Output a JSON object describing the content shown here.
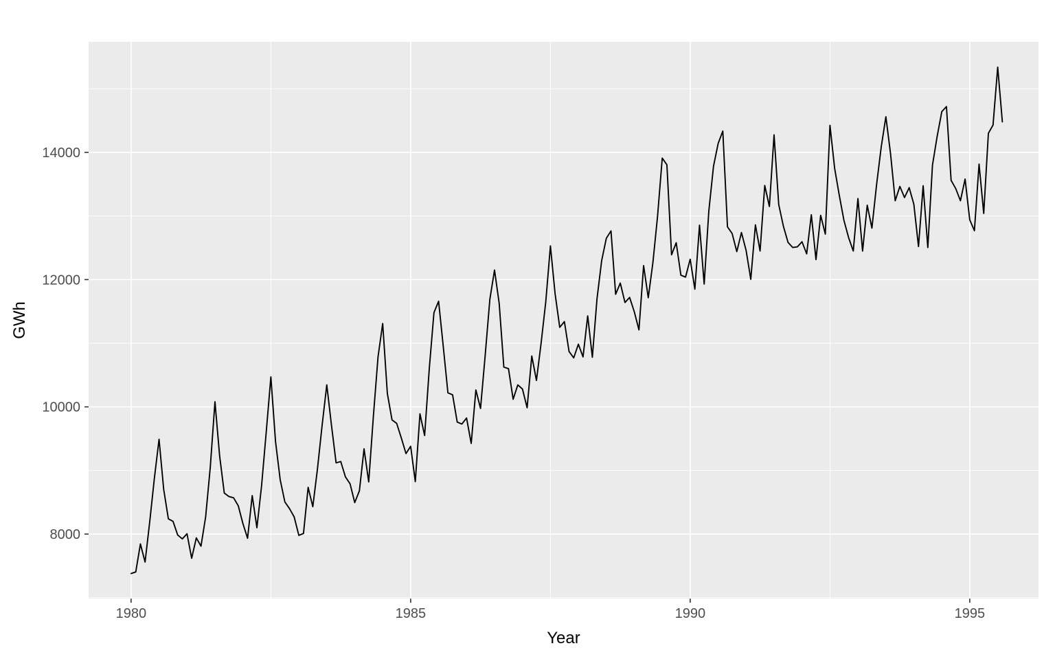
{
  "chart_data": {
    "type": "line",
    "title": "",
    "xlabel": "Year",
    "ylabel": "GWh",
    "legend_position": "none",
    "grid": true,
    "panel_bg_color": "#EBEBEB",
    "grid_color": "#FFFFFF",
    "line_color": "#000000",
    "tick_color": "#333333",
    "tick_label_color": "#4D4D4D",
    "x_ticks": [
      1980,
      1985,
      1990,
      1995
    ],
    "x_minor_ticks": [
      1982.5,
      1987.5,
      1992.5
    ],
    "y_ticks": [
      8000,
      10000,
      12000,
      14000
    ],
    "y_minor_ticks": [
      7000,
      9000,
      11000,
      13000,
      15000
    ],
    "xlim": [
      1979.24,
      1996.23
    ],
    "ylim": [
      6986,
      15737
    ],
    "x_start_year": 1980,
    "x_start_month": 1,
    "frequency_per_year": 12,
    "series": [
      {
        "name": "GWh",
        "values": [
          7380,
          7405,
          7845,
          7560,
          8195,
          8880,
          9490,
          8700,
          8240,
          8200,
          7985,
          7925,
          8005,
          7620,
          7940,
          7810,
          8270,
          9055,
          10080,
          9230,
          8645,
          8590,
          8570,
          8445,
          8165,
          7935,
          8605,
          8100,
          8755,
          9600,
          10470,
          9455,
          8855,
          8505,
          8400,
          8270,
          7980,
          8010,
          8735,
          8430,
          9025,
          9710,
          10345,
          9715,
          9120,
          9140,
          8900,
          8790,
          8495,
          8680,
          9340,
          8820,
          9850,
          10785,
          11310,
          10210,
          9795,
          9740,
          9510,
          9265,
          9380,
          8825,
          9890,
          9550,
          10600,
          11480,
          11660,
          10950,
          10220,
          10190,
          9760,
          9730,
          9825,
          9425,
          10265,
          9975,
          10810,
          11690,
          12150,
          11630,
          10625,
          10600,
          10120,
          10345,
          10280,
          9985,
          10800,
          10415,
          11000,
          11650,
          12530,
          11780,
          11250,
          11340,
          10870,
          10770,
          10985,
          10785,
          11430,
          10780,
          11700,
          12300,
          12650,
          12765,
          11770,
          11945,
          11640,
          11720,
          11495,
          11210,
          12220,
          11715,
          12270,
          13000,
          13910,
          13805,
          12390,
          12580,
          12070,
          12040,
          12320,
          11850,
          12855,
          11930,
          13080,
          13780,
          14140,
          14335,
          12830,
          12725,
          12440,
          12740,
          12460,
          12005,
          12860,
          12450,
          13480,
          13150,
          14275,
          13180,
          12840,
          12585,
          12505,
          12515,
          12595,
          12405,
          13020,
          12315,
          13010,
          12715,
          14425,
          13750,
          13325,
          12930,
          12660,
          12450,
          13275,
          12450,
          13170,
          12810,
          13490,
          14085,
          14560,
          13980,
          13240,
          13465,
          13290,
          13445,
          13185,
          12520,
          13475,
          12505,
          13800,
          14250,
          14640,
          14720,
          13560,
          13430,
          13240,
          13580,
          12940,
          12770,
          13815,
          13040,
          14300,
          14430,
          15340,
          14480
        ]
      }
    ]
  }
}
